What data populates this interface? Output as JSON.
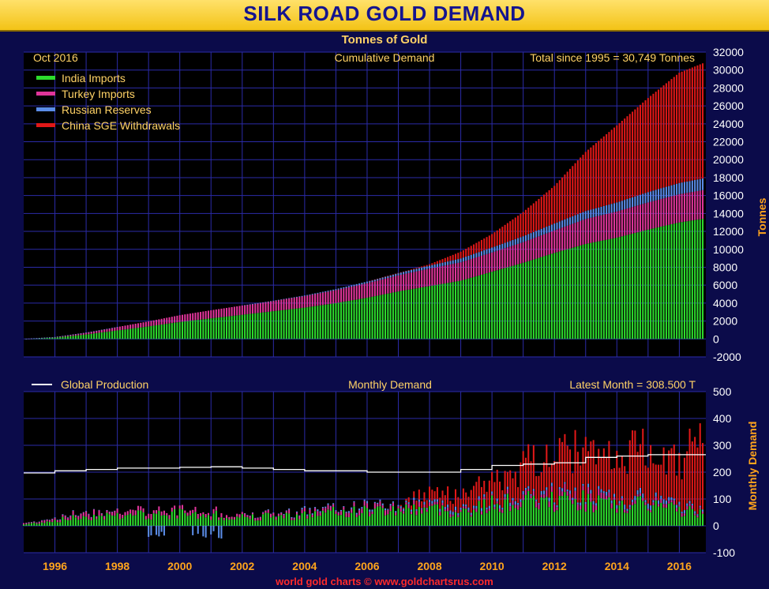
{
  "title": "SILK ROAD GOLD DEMAND",
  "subtitle": "Tonnes of Gold",
  "date_label": "Oct  2016",
  "top_panel": {
    "title": "Cumulative Demand",
    "note": "Total since 1995 = 30,749 Tonnes",
    "ylabel": "Tonnes"
  },
  "bottom_panel": {
    "title": "Monthly Demand",
    "note": "Latest Month = 308.500 T",
    "ylabel": "Monthly Demand"
  },
  "legend": [
    {
      "label": "India Imports",
      "color": "#2ddc2d"
    },
    {
      "label": "Turkey Imports",
      "color": "#e0359a"
    },
    {
      "label": "Russian Reserves",
      "color": "#5b8de8"
    },
    {
      "label": "China SGE Withdrawals",
      "color": "#e01818"
    }
  ],
  "line_legend": {
    "label": "Global Production",
    "color": "#ffffff"
  },
  "footer": "world gold charts © www.goldchartsrus.com",
  "colors": {
    "background": "#0b0b4a",
    "plot": "#000000",
    "grid": "#2b2ba8",
    "accent": "#ffa41c",
    "title_text": "#14148f"
  },
  "chart_data": [
    {
      "type": "bar",
      "stacked": true,
      "title": "Cumulative Demand",
      "ylabel": "Tonnes",
      "ylim": [
        -2000,
        32000
      ],
      "yticks": [
        -2000,
        0,
        2000,
        4000,
        6000,
        8000,
        10000,
        12000,
        14000,
        16000,
        18000,
        20000,
        22000,
        24000,
        26000,
        28000,
        30000,
        32000
      ],
      "xlim": [
        1995.0,
        2016.85
      ],
      "xticks": [
        "1996",
        "1998",
        "2000",
        "2002",
        "2004",
        "2006",
        "2008",
        "2010",
        "2012",
        "2014",
        "2016"
      ],
      "grid": true,
      "legend_position": "top-left",
      "x": [
        1995.0,
        1996.0,
        1997.0,
        1998.0,
        1999.0,
        2000.0,
        2001.0,
        2002.0,
        2003.0,
        2004.0,
        2005.0,
        2006.0,
        2007.0,
        2008.0,
        2009.0,
        2010.0,
        2011.0,
        2012.0,
        2013.0,
        2014.0,
        2015.0,
        2016.0,
        2016.75
      ],
      "series": [
        {
          "name": "India Imports",
          "color": "#2ddc2d",
          "values": [
            0,
            150,
            500,
            950,
            1400,
            1900,
            2300,
            2700,
            3100,
            3500,
            4000,
            4600,
            5300,
            5900,
            6500,
            7500,
            8500,
            9600,
            10600,
            11300,
            12200,
            13000,
            13400
          ]
        },
        {
          "name": "Turkey Imports",
          "color": "#e0359a",
          "values": [
            0,
            60,
            200,
            380,
            560,
            750,
            900,
            1030,
            1150,
            1280,
            1450,
            1620,
            1800,
            1950,
            2050,
            2150,
            2300,
            2500,
            2780,
            2920,
            3030,
            3150,
            3200
          ]
        },
        {
          "name": "Russian Reserves",
          "color": "#5b8de8",
          "values": [
            0,
            5,
            10,
            0,
            0,
            0,
            0,
            0,
            20,
            70,
            110,
            180,
            250,
            330,
            430,
            550,
            660,
            780,
            890,
            1010,
            1150,
            1250,
            1300
          ]
        },
        {
          "name": "China SGE Withdrawals",
          "color": "#e01818",
          "values": [
            0,
            0,
            0,
            0,
            0,
            0,
            0,
            0,
            0,
            0,
            0,
            0,
            10,
            150,
            750,
            1500,
            2700,
            4200,
            6600,
            8600,
            10500,
            12300,
            12849
          ]
        }
      ]
    },
    {
      "type": "bar",
      "stacked": true,
      "title": "Monthly Demand",
      "ylabel": "Monthly Demand",
      "ylim": [
        -100,
        500
      ],
      "yticks": [
        -100,
        0,
        100,
        200,
        300,
        400,
        500
      ],
      "xlim": [
        1995.0,
        2016.85
      ],
      "grid": true,
      "x": [
        1995.0,
        1996.0,
        1997.0,
        1998.0,
        1999.0,
        2000.0,
        2001.0,
        2002.0,
        2003.0,
        2004.0,
        2005.0,
        2006.0,
        2007.0,
        2008.0,
        2009.0,
        2010.0,
        2011.0,
        2012.0,
        2013.0,
        2014.0,
        2015.0,
        2016.0,
        2016.75
      ],
      "series": [
        {
          "name": "India Imports",
          "color": "#2ddc2d",
          "values": [
            5,
            20,
            35,
            40,
            40,
            45,
            40,
            35,
            35,
            40,
            50,
            55,
            60,
            65,
            50,
            80,
            90,
            90,
            95,
            70,
            80,
            60,
            45
          ]
        },
        {
          "name": "Turkey Imports",
          "color": "#e0359a",
          "values": [
            5,
            8,
            15,
            15,
            15,
            15,
            12,
            10,
            10,
            12,
            15,
            15,
            15,
            12,
            8,
            10,
            15,
            20,
            25,
            12,
            10,
            12,
            8
          ]
        },
        {
          "name": "Russian Reserves",
          "color": "#5b8de8",
          "values": [
            0,
            2,
            2,
            0,
            0,
            0,
            0,
            0,
            2,
            5,
            4,
            6,
            6,
            8,
            10,
            10,
            10,
            10,
            9,
            12,
            15,
            9,
            8
          ]
        },
        {
          "name": "China SGE Withdrawals",
          "color": "#e01818",
          "values": [
            0,
            0,
            0,
            0,
            0,
            0,
            0,
            0,
            0,
            0,
            0,
            0,
            0,
            40,
            55,
            70,
            110,
            125,
            190,
            170,
            200,
            150,
            247.5
          ]
        },
        {
          "name": "Global Production",
          "type": "line",
          "color": "#ffffff",
          "values": [
            197,
            205,
            210,
            215,
            215,
            218,
            220,
            215,
            210,
            205,
            205,
            200,
            200,
            200,
            210,
            225,
            230,
            235,
            255,
            260,
            265,
            265,
            265
          ]
        }
      ]
    }
  ]
}
